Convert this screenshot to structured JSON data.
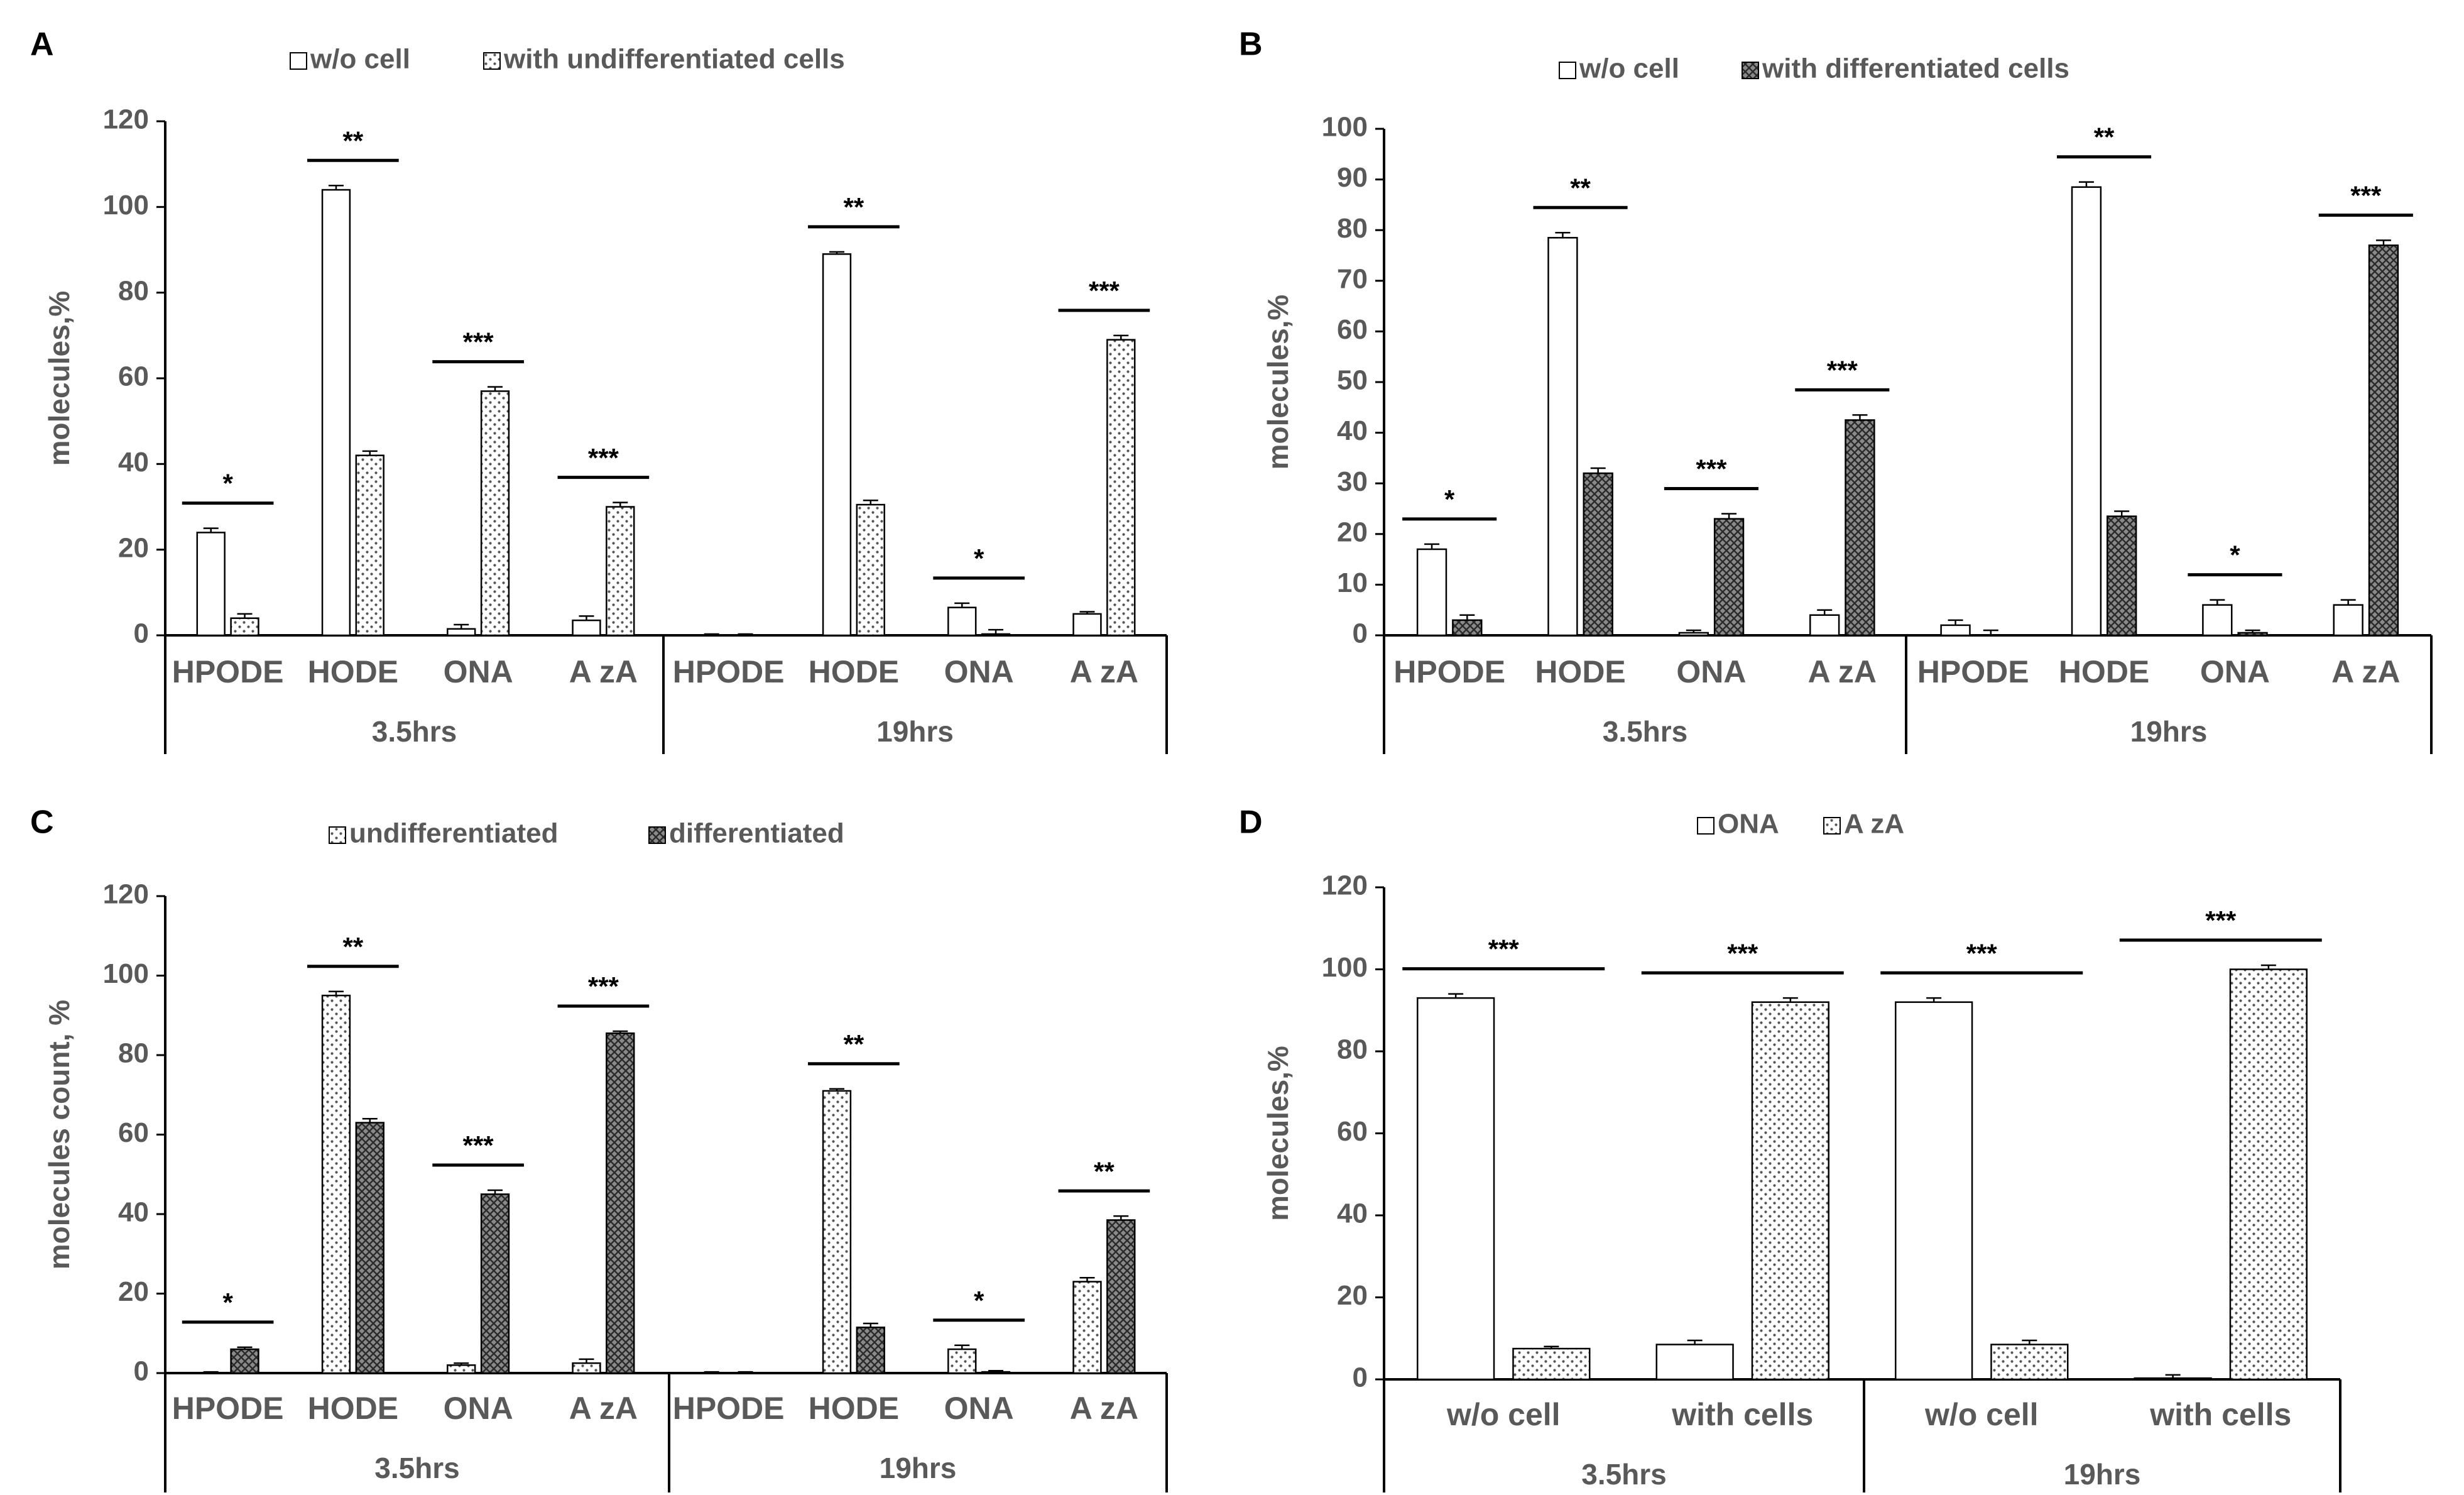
{
  "colors": {
    "axis": "#000000",
    "tick_text": "#595959",
    "bar_outline": "#000000",
    "plain_fill": "#ffffff",
    "dotted_fill": "#ffffff",
    "dotted_dots": "#555555",
    "crosshatch_bg": "#8a8a8a",
    "crosshatch_lines": "#2a2a2a"
  },
  "chart_data": [
    {
      "panel": "A",
      "type": "bar",
      "ylabel": "molecules,%",
      "ylim": [
        0,
        120
      ],
      "yticks": [
        0,
        20,
        40,
        60,
        80,
        100,
        120
      ],
      "groups": [
        "3.5hrs",
        "19hrs"
      ],
      "categories": [
        "HPODE",
        "HODE",
        "ONA",
        "AzA",
        "HPODE",
        "HODE",
        "ONA",
        "AzA"
      ],
      "category_labels": [
        "HPODE",
        "HODE",
        "ONA",
        "A zA",
        "HPODE",
        "HODE",
        "ONA",
        "A zA"
      ],
      "series": [
        {
          "name": "w/o cell",
          "pattern": "plain",
          "values": [
            24,
            104,
            1.5,
            3.5,
            0,
            89,
            6.5,
            5
          ],
          "errors": [
            1,
            1,
            1,
            1,
            0.3,
            0.5,
            1,
            0.5
          ]
        },
        {
          "name": "with undifferentiated cells",
          "pattern": "dotted",
          "values": [
            4,
            42,
            57,
            30,
            0,
            30.5,
            0.3,
            69
          ],
          "errors": [
            1,
            1,
            1,
            1,
            0.3,
            1,
            1,
            1
          ]
        }
      ],
      "significance": [
        "*",
        "**",
        "***",
        "***",
        "",
        "**",
        "*",
        "***"
      ]
    },
    {
      "panel": "B",
      "type": "bar",
      "ylabel": "molecules,%",
      "ylim": [
        0,
        100
      ],
      "yticks": [
        0,
        10,
        20,
        30,
        40,
        50,
        60,
        70,
        80,
        90,
        100
      ],
      "groups": [
        "3.5hrs",
        "19hrs"
      ],
      "categories": [
        "HPODE",
        "HODE",
        "ONA",
        "AzA",
        "HPODE",
        "HODE",
        "ONA",
        "AzA"
      ],
      "category_labels": [
        "HPODE",
        "HODE",
        "ONA",
        "A zA",
        "HPODE",
        "HODE",
        "ONA",
        "A zA"
      ],
      "series": [
        {
          "name": "w/o cell",
          "pattern": "plain",
          "values": [
            17,
            78.5,
            0.5,
            4,
            2,
            88.5,
            6,
            6
          ],
          "errors": [
            1,
            1,
            0.5,
            1,
            1,
            1,
            1,
            1
          ]
        },
        {
          "name": "with differentiated cells",
          "pattern": "crosshatch",
          "values": [
            3,
            32,
            23,
            42.5,
            0,
            23.5,
            0.5,
            77
          ],
          "errors": [
            1,
            1,
            1,
            1,
            1,
            1,
            0.5,
            1
          ]
        }
      ],
      "significance": [
        "*",
        "**",
        "***",
        "***",
        "",
        "**",
        "*",
        "***"
      ]
    },
    {
      "panel": "C",
      "type": "bar",
      "ylabel": "molecules count, %",
      "ylim": [
        0,
        120
      ],
      "yticks": [
        0,
        20,
        40,
        60,
        80,
        100,
        120
      ],
      "groups": [
        "3.5hrs",
        "19hrs"
      ],
      "categories": [
        "HPODE",
        "HODE",
        "ONA",
        "AzA",
        "HPODE",
        "HODE",
        "ONA",
        "AzA"
      ],
      "category_labels": [
        "HPODE",
        "HODE",
        "ONA",
        "A zA",
        "HPODE",
        "HODE",
        "ONA",
        "A zA"
      ],
      "series": [
        {
          "name": "undifferentiated",
          "pattern": "dotted",
          "values": [
            0,
            95,
            2,
            2.5,
            0,
            71,
            6,
            23
          ],
          "errors": [
            0.3,
            1,
            0.5,
            1,
            0.3,
            0.5,
            1,
            1
          ]
        },
        {
          "name": "differentiated",
          "pattern": "crosshatch",
          "values": [
            6,
            63,
            45,
            85.5,
            0,
            11.5,
            0.3,
            38.5
          ],
          "errors": [
            0.5,
            1,
            1,
            0.5,
            0.3,
            1,
            0.3,
            1
          ]
        }
      ],
      "significance": [
        "*",
        "**",
        "***",
        "***",
        "",
        "**",
        "*",
        "**"
      ]
    },
    {
      "panel": "D",
      "type": "bar",
      "ylabel": "molecules,%",
      "ylim": [
        0,
        120
      ],
      "yticks": [
        0,
        20,
        40,
        60,
        80,
        100,
        120
      ],
      "groups": [
        "3.5hrs",
        "19hrs"
      ],
      "categories": [
        "w/o cell",
        "with cells",
        "w/o cell",
        "with cells"
      ],
      "category_labels": [
        "w/o cell",
        "with cells",
        "w/o cell",
        "with cells"
      ],
      "series": [
        {
          "name": "ONA",
          "pattern": "plain",
          "values": [
            93,
            8.5,
            92,
            0.3
          ],
          "errors": [
            1,
            1,
            1,
            0.8
          ]
        },
        {
          "name": "A zA",
          "pattern": "dotted",
          "values": [
            7.5,
            92,
            8.5,
            100
          ],
          "errors": [
            0.5,
            1,
            1,
            1
          ]
        }
      ],
      "significance": [
        "***",
        "***",
        "***",
        "***"
      ]
    }
  ]
}
